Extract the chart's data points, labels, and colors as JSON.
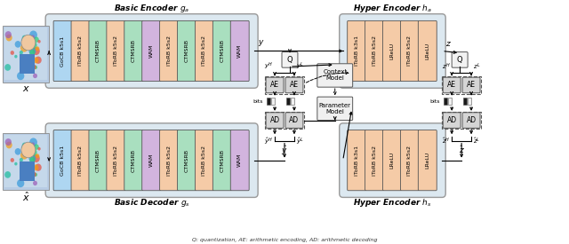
{
  "bg_color": "#ffffff",
  "block_colors": {
    "gocb": "#aed6f1",
    "itorb": "#f5cba7",
    "ctmsrb": "#a9dfbf",
    "wam": "#d2b4de",
    "lrelu": "#f5cba7",
    "q": "#f2f2f2",
    "ae": "#d5d5d5",
    "ad": "#d5d5d5",
    "context": "#f0f0f0",
    "param": "#f0f0f0",
    "outer": "#dce8f0"
  },
  "basic_enc_label": "Basic Encoder $g_a$",
  "basic_dec_label": "Basic Decoder $g_s$",
  "hyper_enc_label": "Hyper Encoder $h_a$",
  "hyper_dec_label": "Hyper Encoder $h_s$",
  "blocks_enc": [
    [
      "GoCB k5s1",
      "gocb"
    ],
    [
      "IToRB k5s2",
      "itorb"
    ],
    [
      "CTMSRB",
      "ctmsrb"
    ],
    [
      "IToRB k5s2",
      "itorb"
    ],
    [
      "CTMSRB",
      "ctmsrb"
    ],
    [
      "WAM",
      "wam"
    ],
    [
      "IToRB k5s2",
      "itorb"
    ],
    [
      "CTMSRB",
      "ctmsrb"
    ],
    [
      "IToRB k5s2",
      "itorb"
    ],
    [
      "CTMSRB",
      "ctmsrb"
    ],
    [
      "WAM",
      "wam"
    ]
  ],
  "blocks_dec": [
    [
      "GoCB k5s1",
      "gocb"
    ],
    [
      "IToRB k5s2",
      "itorb"
    ],
    [
      "CTMSRB",
      "ctmsrb"
    ],
    [
      "IToRB k5s2",
      "itorb"
    ],
    [
      "CTMSRB",
      "ctmsrb"
    ],
    [
      "WAM",
      "wam"
    ],
    [
      "IToRB k5s2",
      "itorb"
    ],
    [
      "CTMSRB",
      "ctmsrb"
    ],
    [
      "IToRB k5s2",
      "itorb"
    ],
    [
      "CTMSRB",
      "ctmsrb"
    ],
    [
      "WAM",
      "wam"
    ]
  ],
  "blocks_henc": [
    [
      "IToRB k3s1",
      "itorb"
    ],
    [
      "IToRB k5s2",
      "itorb"
    ],
    [
      "LReLU",
      "lrelu"
    ],
    [
      "IToRB k5s2",
      "itorb"
    ],
    [
      "LReLU",
      "lrelu"
    ]
  ],
  "blocks_hdec": [
    [
      "IToRB k3s1",
      "itorb"
    ],
    [
      "IToRB k5s2",
      "itorb"
    ],
    [
      "LReLU",
      "lrelu"
    ],
    [
      "IToRB k5s2",
      "itorb"
    ],
    [
      "LReLU",
      "lrelu"
    ]
  ]
}
